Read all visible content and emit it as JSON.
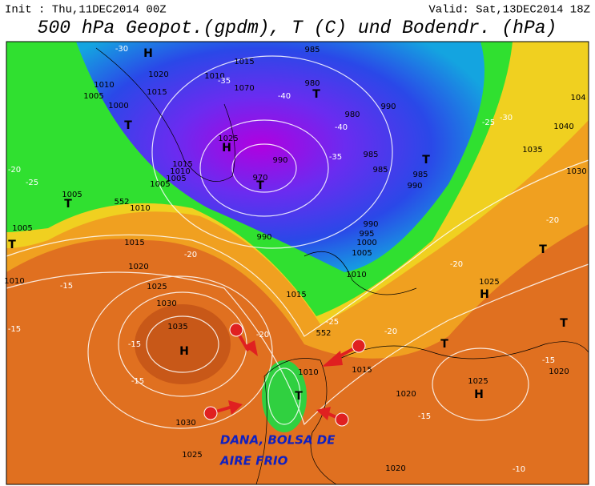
{
  "header": {
    "init": "Init : Thu,11DEC2014 00Z",
    "valid": "Valid: Sat,13DEC2014 18Z",
    "title": "500 hPa Geopot.(gpdm), T (C) und Bodendr. (hPa)"
  },
  "annotation": {
    "line1": "DANA, BOLSA DE",
    "line2": "AIRE FRIO"
  },
  "map_labels": [
    "H",
    "1015",
    "985",
    "1020",
    "1010",
    "1070",
    "1010",
    "1005",
    "1000",
    "1015",
    "980",
    "T",
    "990",
    "980",
    "T",
    "1025",
    "H",
    "1015",
    "1010",
    "1005",
    "990",
    "970",
    "T",
    "985",
    "985",
    "T",
    "985",
    "990",
    "1005",
    "1005",
    "T",
    "552",
    "1010",
    "1005",
    "T",
    "990",
    "990",
    "995",
    "1000",
    "1005",
    "1015",
    "1020",
    "1025",
    "1030",
    "1035",
    "H",
    "1010",
    "1015",
    "1010",
    "552",
    "1015",
    "1010",
    "T",
    "1030",
    "1025",
    "1020",
    "1020",
    "1025",
    "H",
    "1020",
    "T",
    "T",
    "1025",
    "H",
    "T",
    "1035",
    "1040",
    "1030",
    "104",
    "-30",
    "-35",
    "-40",
    "-40",
    "-35",
    "-25",
    "-20",
    "-20",
    "-15",
    "-15",
    "-15",
    "-15",
    "-20",
    "-25",
    "-20",
    "-15",
    "-10",
    "-25",
    "-30",
    "-20",
    "-15",
    "-20"
  ]
}
